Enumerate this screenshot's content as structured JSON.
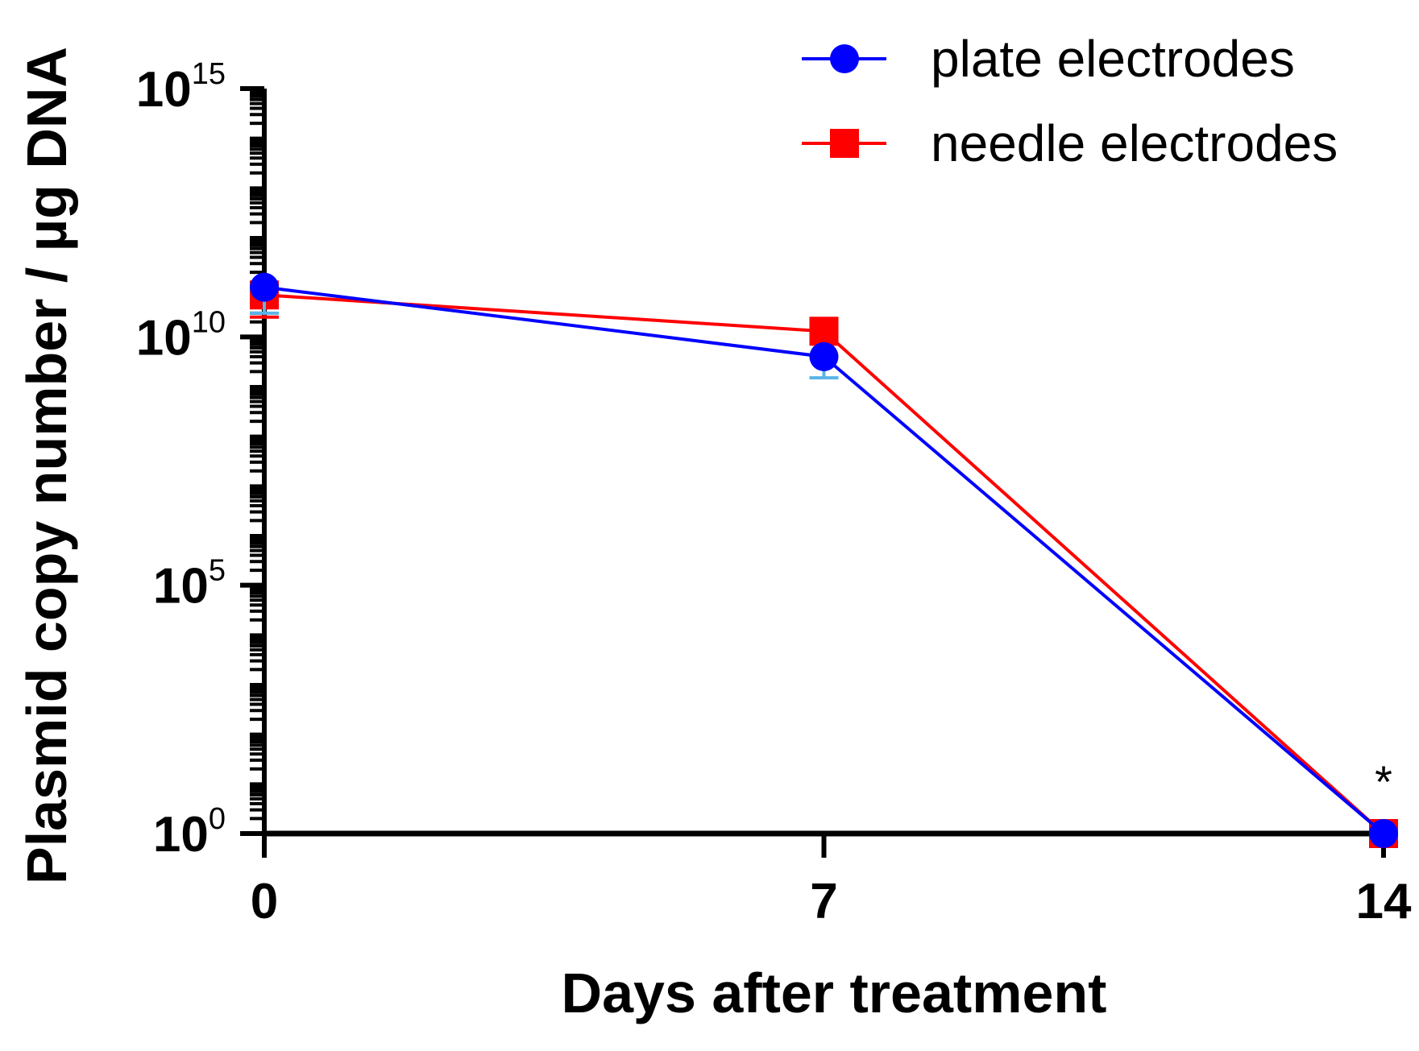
{
  "chart_data": {
    "type": "line",
    "title": "",
    "xlabel": "Days after treatment",
    "ylabel": "Plasmid copy number / µg DNA",
    "yscale": "log",
    "xlim": [
      0,
      14
    ],
    "ylim": [
      1,
      1000000000000000.0
    ],
    "x": [
      0,
      7,
      14
    ],
    "x_tick_labels": [
      "0",
      "7",
      "14"
    ],
    "y_ticks": [
      {
        "value": 1,
        "base": "10",
        "exponent": "0"
      },
      {
        "value": 100000,
        "base": "10",
        "exponent": "5"
      },
      {
        "value": 10000000000,
        "base": "10",
        "exponent": "10"
      },
      {
        "value": 1000000000000000,
        "base": "10",
        "exponent": "15"
      }
    ],
    "series": [
      {
        "name": "plate electrodes",
        "color": "#0000ff",
        "error_color": "#5ab4e6",
        "marker": "circle",
        "values": [
          100000000000.0,
          4000000000.0,
          1
        ],
        "errors_low": [
          30000000000.0,
          1500000000.0,
          0
        ]
      },
      {
        "name": "needle electrodes",
        "color": "#ff0000",
        "error_color": "#ff0000",
        "marker": "square",
        "values": [
          70000000000.0,
          13000000000.0,
          1
        ],
        "errors_low": [
          25000000000.0,
          0,
          0
        ]
      }
    ],
    "legend_position": "top-right",
    "annotations": [
      {
        "text": "*",
        "x": 14
      }
    ],
    "grid": false
  }
}
